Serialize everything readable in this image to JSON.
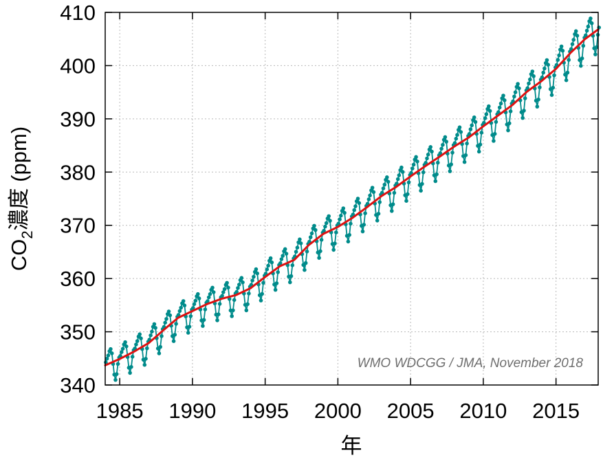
{
  "chart_data": {
    "type": "line",
    "xlabel": "年",
    "ylabel": "CO₂濃度 (ppm)",
    "ylabel_parts": {
      "pre": "CO",
      "sub": "2",
      "post": "濃度 (ppm)"
    },
    "xlim": [
      1984.0,
      2017.9
    ],
    "ylim": [
      340,
      410
    ],
    "x_ticks": [
      1985,
      1990,
      1995,
      2000,
      2005,
      2010,
      2015
    ],
    "y_ticks": [
      340,
      350,
      360,
      370,
      380,
      390,
      400,
      410
    ],
    "grid": true,
    "annotation": "WMO WDCGG / JMA, November 2018",
    "series": [
      {
        "kind": "monthly",
        "color": "#008b8b",
        "start_year": 1984,
        "start_month": 1,
        "end_year": 2017,
        "end_month": 12,
        "seasonal_cycle_ppm": [
          0.5,
          1.1,
          1.6,
          2.3,
          2.6,
          1.7,
          -0.4,
          -2.5,
          -3.6,
          -2.6,
          -0.8,
          0.3
        ]
      },
      {
        "kind": "trend",
        "color": "#dd1111",
        "x": [
          1984.0,
          1985.0,
          1986.0,
          1987.0,
          1988.0,
          1989.0,
          1990.0,
          1991.0,
          1992.0,
          1993.0,
          1994.0,
          1995.0,
          1996.0,
          1997.0,
          1998.0,
          1999.0,
          2000.0,
          2001.0,
          2002.0,
          2003.0,
          2004.0,
          2005.0,
          2006.0,
          2007.0,
          2008.0,
          2009.0,
          2010.0,
          2011.0,
          2012.0,
          2013.0,
          2014.0,
          2015.0,
          2016.0,
          2017.0,
          2017.9
        ],
        "y": [
          343.7,
          344.9,
          346.3,
          347.9,
          350.3,
          352.6,
          353.9,
          355.2,
          356.2,
          356.9,
          358.2,
          360.3,
          362.3,
          363.5,
          366.3,
          368.4,
          369.7,
          371.4,
          373.4,
          375.5,
          377.2,
          379.2,
          381.1,
          382.9,
          384.8,
          386.5,
          388.6,
          390.6,
          392.6,
          395.1,
          397.1,
          399.4,
          402.4,
          405.0,
          406.8
        ]
      }
    ]
  }
}
